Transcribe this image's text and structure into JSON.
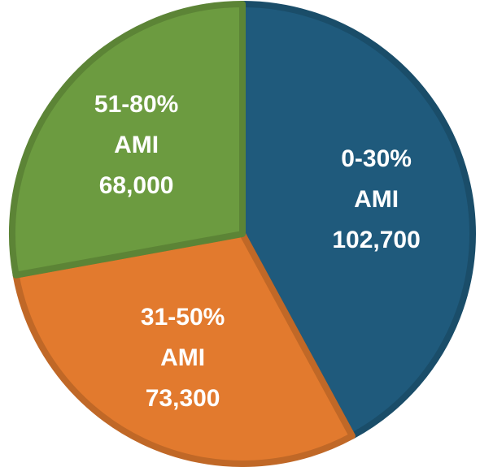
{
  "chart_data": {
    "type": "pie",
    "categories": [
      "0-30% AMI",
      "31-50% AMI",
      "51-80% AMI"
    ],
    "values": [
      102700,
      73300,
      68000
    ],
    "value_labels": [
      "102,700",
      "73,300",
      "68,000"
    ],
    "colors": [
      "#1f5a7c",
      "#e27a2e",
      "#6c9b40"
    ],
    "start_angle": 0,
    "direction": "clockwise"
  }
}
